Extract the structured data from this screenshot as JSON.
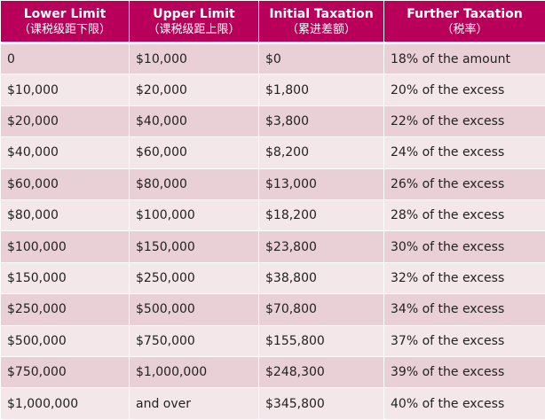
{
  "colors": {
    "header_bg": "#b8005a",
    "header_text": "#ffffff",
    "row_dark": "#e9cfd6",
    "row_light": "#f4e7ea"
  },
  "header": {
    "lower_limit": {
      "label": "Lower Limit",
      "sub": "（课税级距下限）"
    },
    "upper_limit": {
      "label": "Upper Limit",
      "sub": "（课税级距上限）"
    },
    "initial_taxation": {
      "label": "Initial Taxation",
      "sub": "（累进差额）"
    },
    "further_taxation": {
      "label": "Further Taxation",
      "sub": "（税率）"
    }
  },
  "rows": [
    {
      "lower": "0",
      "upper": "$10,000",
      "initial": "$0",
      "further": "18% of the amount"
    },
    {
      "lower": "$10,000",
      "upper": "$20,000",
      "initial": "$1,800",
      "further": "20% of the excess"
    },
    {
      "lower": "$20,000",
      "upper": "$40,000",
      "initial": "$3,800",
      "further": "22% of the excess"
    },
    {
      "lower": "$40,000",
      "upper": "$60,000",
      "initial": "$8,200",
      "further": "24% of the excess"
    },
    {
      "lower": "$60,000",
      "upper": "$80,000",
      "initial": "$13,000",
      "further": "26% of the excess"
    },
    {
      "lower": "$80,000",
      "upper": "$100,000",
      "initial": "$18,200",
      "further": "28% of the excess"
    },
    {
      "lower": "$100,000",
      "upper": "$150,000",
      "initial": "$23,800",
      "further": "30% of the excess"
    },
    {
      "lower": "$150,000",
      "upper": "$250,000",
      "initial": "$38,800",
      "further": "32% of the excess"
    },
    {
      "lower": "$250,000",
      "upper": "$500,000",
      "initial": "$70,800",
      "further": "34% of the excess"
    },
    {
      "lower": "$500,000",
      "upper": "$750,000",
      "initial": "$155,800",
      "further": "37% of the excess"
    },
    {
      "lower": "$750,000",
      "upper": "$1,000,000",
      "initial": "$248,300",
      "further": "39% of the excess"
    },
    {
      "lower": "$1,000,000",
      "upper": "and over",
      "initial": "$345,800",
      "further": "40% of the excess"
    }
  ]
}
